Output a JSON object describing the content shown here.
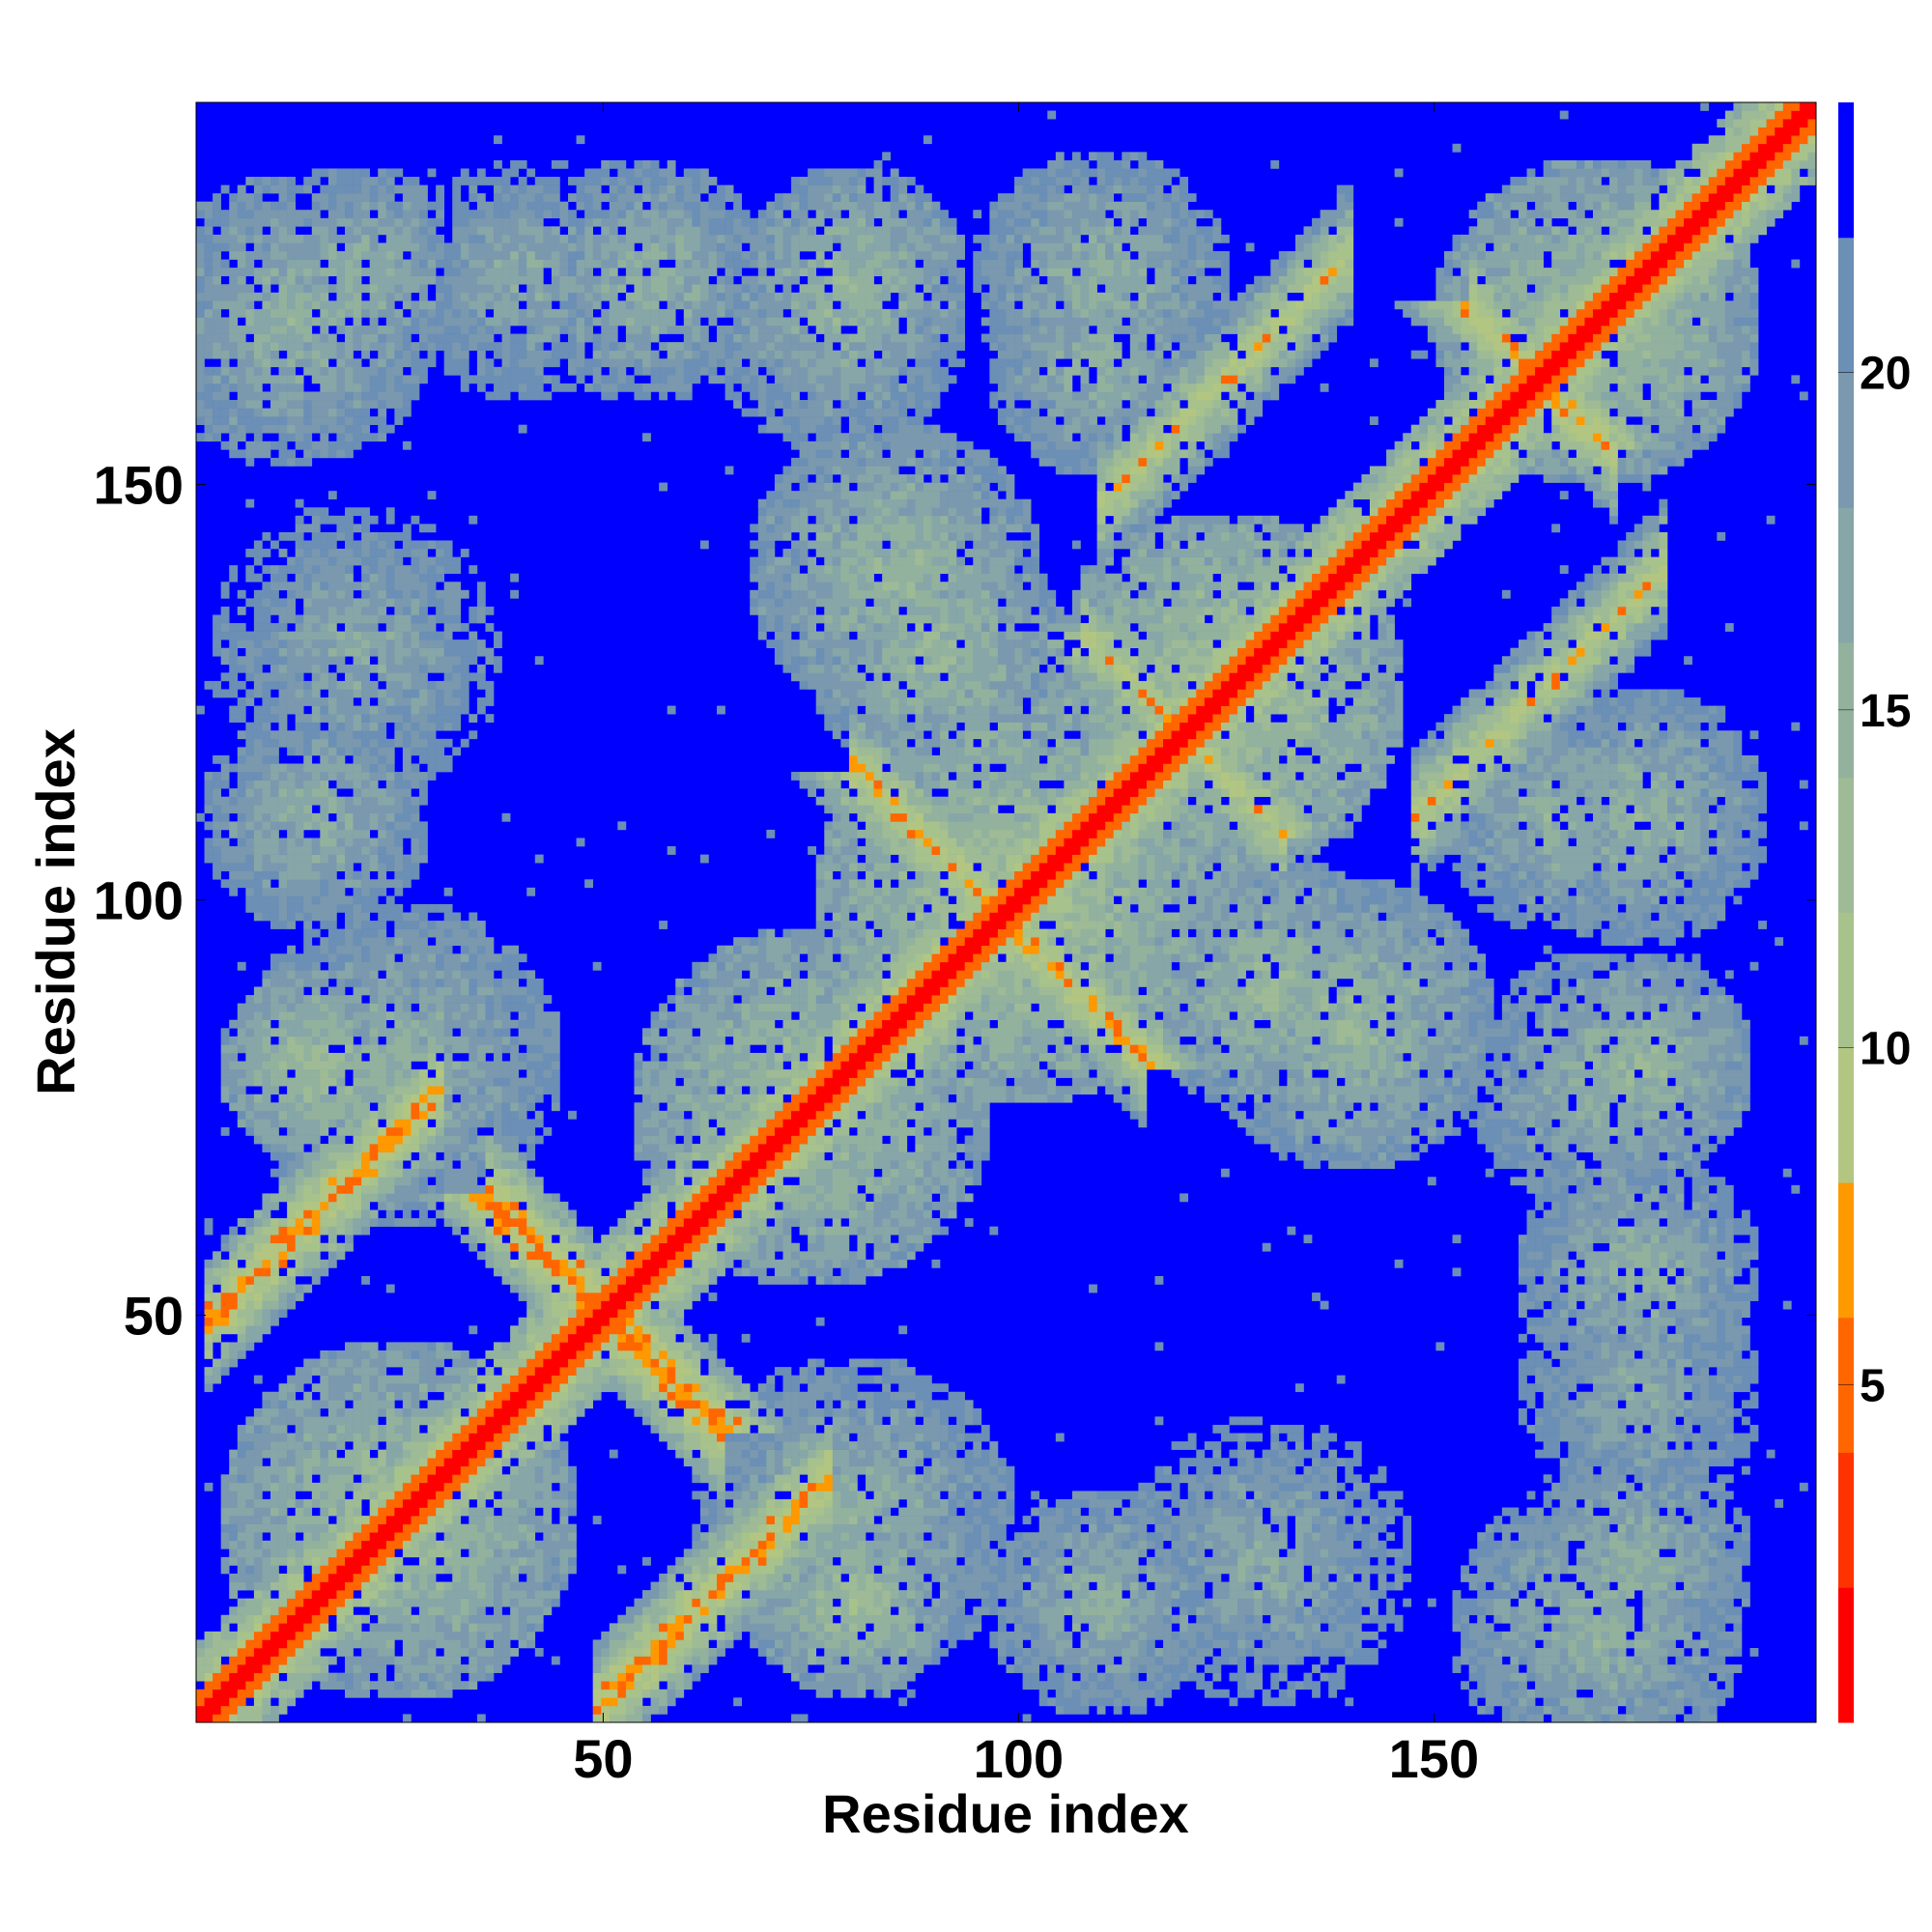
{
  "chart_data": {
    "type": "heatmap",
    "title": "",
    "xlabel": "Residue index",
    "ylabel": "Residue index",
    "n_residues": 196,
    "xlim": [
      1,
      196
    ],
    "ylim": [
      1,
      196
    ],
    "x_ticks": [
      50,
      100,
      150
    ],
    "y_ticks": [
      50,
      100,
      150
    ],
    "colorbar": {
      "range": [
        0,
        24
      ],
      "ticks": [
        5,
        10,
        15,
        20
      ],
      "bands": [
        {
          "from": 0,
          "to": 2,
          "color": "#ff0000"
        },
        {
          "from": 2,
          "to": 4,
          "color": "#ff3300"
        },
        {
          "from": 4,
          "to": 6,
          "color": "#ff6600"
        },
        {
          "from": 6,
          "to": 8,
          "color": "#ff9900"
        },
        {
          "from": 8,
          "to": 10,
          "color": "#b2c682"
        },
        {
          "from": 10,
          "to": 12,
          "color": "#a8c28c"
        },
        {
          "from": 12,
          "to": 14,
          "color": "#9ebb96"
        },
        {
          "from": 14,
          "to": 16,
          "color": "#93b29e"
        },
        {
          "from": 16,
          "to": 18,
          "color": "#86a6a8"
        },
        {
          "from": 18,
          "to": 20,
          "color": "#7a99ae"
        },
        {
          "from": 20,
          "to": 22,
          "color": "#6b8fb5"
        },
        {
          "from": 22,
          "to": 24,
          "color": "#0000ff"
        }
      ]
    },
    "background_value": 24,
    "diagonal_band": {
      "width_residues": 3.5
    },
    "contact_bands": [
      {
        "type": "anti",
        "center_sum": 100,
        "from_index": 36,
        "to_index": 64,
        "value": 6
      },
      {
        "type": "parallel",
        "offset": 47,
        "from_index": 2,
        "to_index": 30,
        "value": 7
      },
      {
        "type": "parallel",
        "offset": -47,
        "from_index": 49,
        "to_index": 77,
        "value": 7
      },
      {
        "type": "anti",
        "center_sum": 196,
        "from_index": 80,
        "to_index": 115,
        "value": 8
      },
      {
        "type": "anti",
        "center_sum": 240,
        "from_index": 108,
        "to_index": 132,
        "value": 9
      },
      {
        "type": "parallel",
        "offset": 38,
        "from_index": 110,
        "to_index": 140,
        "value": 9
      },
      {
        "type": "parallel",
        "offset": -38,
        "from_index": 148,
        "to_index": 178,
        "value": 9
      },
      {
        "type": "anti",
        "center_sum": 326,
        "from_index": 155,
        "to_index": 172,
        "value": 8
      }
    ],
    "blobs": [
      {
        "cx": 25,
        "cy": 25,
        "r": 22,
        "value": 13
      },
      {
        "cx": 75,
        "cy": 75,
        "r": 22,
        "value": 13
      },
      {
        "cx": 100,
        "cy": 100,
        "r": 25,
        "value": 12
      },
      {
        "cx": 125,
        "cy": 125,
        "r": 22,
        "value": 12
      },
      {
        "cx": 170,
        "cy": 170,
        "r": 20,
        "value": 13
      },
      {
        "cx": 12,
        "cy": 170,
        "r": 18,
        "value": 15
      },
      {
        "cx": 40,
        "cy": 175,
        "r": 15,
        "value": 16
      },
      {
        "cx": 78,
        "cy": 170,
        "r": 16,
        "value": 15
      },
      {
        "cx": 110,
        "cy": 165,
        "r": 14,
        "value": 15
      },
      {
        "cx": 15,
        "cy": 110,
        "r": 14,
        "value": 15
      },
      {
        "cx": 15,
        "cy": 80,
        "r": 12,
        "value": 13
      },
      {
        "cx": 80,
        "cy": 25,
        "r": 20,
        "value": 15
      },
      {
        "cx": 130,
        "cy": 20,
        "r": 18,
        "value": 16
      },
      {
        "cx": 175,
        "cy": 20,
        "r": 14,
        "value": 15
      },
      {
        "cx": 175,
        "cy": 55,
        "r": 15,
        "value": 15
      },
      {
        "cx": 175,
        "cy": 110,
        "r": 16,
        "value": 15
      },
      {
        "cx": 175,
        "cy": 80,
        "r": 14,
        "value": 14
      },
      {
        "cx": 140,
        "cy": 85,
        "r": 18,
        "value": 14
      },
      {
        "cx": 90,
        "cy": 130,
        "r": 16,
        "value": 14
      }
    ],
    "noise_seed": 7
  }
}
